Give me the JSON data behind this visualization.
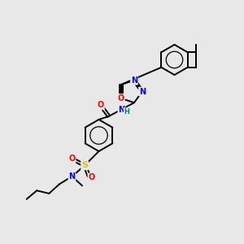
{
  "bg_color": "#e8e8e8",
  "bond_color": "#000000",
  "atom_colors": {
    "N": "#0000ff",
    "O": "#ff0000",
    "S": "#cccc00",
    "H": "#008080",
    "C": "#000000"
  },
  "figsize": [
    3.0,
    3.0
  ],
  "dpi": 100,
  "lw": 1.4,
  "font_size": 7.5
}
